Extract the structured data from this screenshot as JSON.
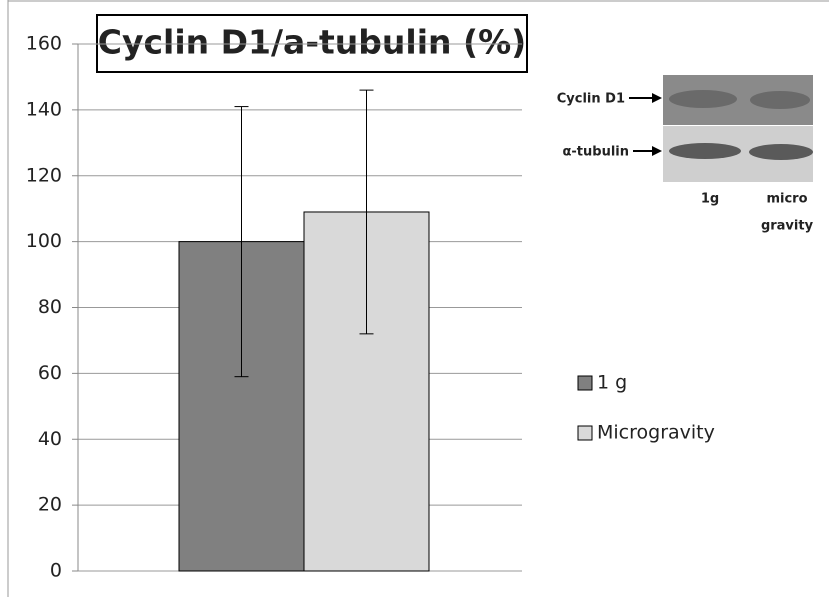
{
  "chart_data": {
    "type": "bar",
    "title": "Cyclin D1/a-tubulin (%)",
    "series": [
      {
        "name": "1 g",
        "color": "#808080",
        "values": [
          100
        ],
        "errors": [
          41
        ]
      },
      {
        "name": "Microgravity",
        "color": "#d9d9d9",
        "values": [
          109
        ],
        "errors": [
          37
        ]
      }
    ],
    "ylim": [
      0,
      160
    ],
    "yticks": [
      0,
      20,
      40,
      60,
      80,
      100,
      120,
      140,
      160
    ],
    "grid": true,
    "inset": {
      "row_labels": [
        "Cyclin D1",
        "α-tubulin"
      ],
      "lane_labels": [
        [
          "1g"
        ],
        [
          "micro",
          "gravity"
        ]
      ]
    }
  }
}
